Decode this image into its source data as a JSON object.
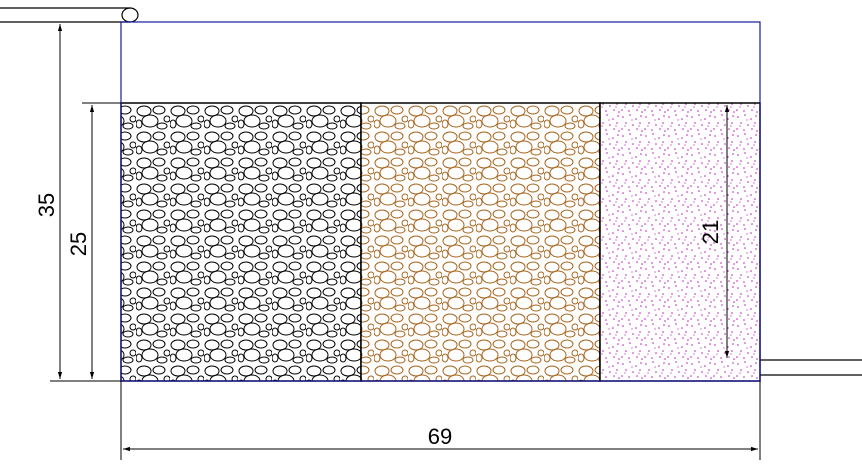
{
  "dimensions": {
    "total_height": "35",
    "fill_height": "25",
    "sand_height": "21",
    "total_width": "69"
  }
}
